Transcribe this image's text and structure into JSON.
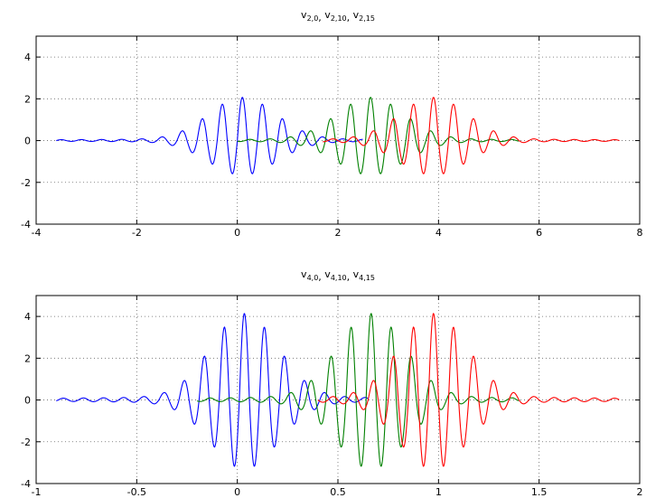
{
  "chart_data": [
    {
      "type": "line",
      "title": "v2,0, v2,10, v2,15",
      "title_parts": [
        {
          "name": "v",
          "sub": "2,0"
        },
        {
          "name": "v",
          "sub": "2,10"
        },
        {
          "name": "v",
          "sub": "2,15"
        }
      ],
      "xlim": [
        -4,
        8
      ],
      "ylim": [
        -4,
        5
      ],
      "xticks": [
        -4,
        -2,
        0,
        2,
        4,
        6,
        8
      ],
      "xtick_labels": [
        "-4",
        "-2",
        "0",
        "2",
        "4",
        "6",
        "8"
      ],
      "yticks": [
        -4,
        -2,
        0,
        2,
        4
      ],
      "ytick_labels": [
        "-4",
        "-2",
        "0",
        "2",
        "4"
      ],
      "grid": true,
      "series": [
        {
          "color": "#0000ff",
          "center": 0.1,
          "peak": 2,
          "trough": -1.6,
          "xmin": -3.6,
          "xmax": 2.5,
          "half_period": 0.2
        },
        {
          "color": "#008000",
          "center": 2.65,
          "peak": 2,
          "trough": -1.6,
          "xmin": 0.0,
          "xmax": 5.6,
          "half_period": 0.2
        },
        {
          "color": "#ff0000",
          "center": 3.9,
          "peak": 2,
          "trough": -1.6,
          "xmin": 1.7,
          "xmax": 7.6,
          "half_period": 0.2
        }
      ]
    },
    {
      "type": "line",
      "title": "v4,0, v4,10, v4,15",
      "title_parts": [
        {
          "name": "v",
          "sub": "4,0"
        },
        {
          "name": "v",
          "sub": "4,10"
        },
        {
          "name": "v",
          "sub": "4,15"
        }
      ],
      "xlim": [
        -1,
        2
      ],
      "ylim": [
        -4,
        5
      ],
      "xticks": [
        -1,
        -0.5,
        0,
        0.5,
        1,
        1.5,
        2
      ],
      "xtick_labels": [
        "-1",
        "-0.5",
        "0",
        "0.5",
        "1",
        "1.5",
        "2"
      ],
      "yticks": [
        -4,
        -2,
        0,
        2,
        4
      ],
      "ytick_labels": [
        "-4",
        "-2",
        "0",
        "2",
        "4"
      ],
      "grid": true,
      "series": [
        {
          "color": "#0000ff",
          "center": 0.035,
          "peak": 4,
          "trough": -3.2,
          "xmin": -0.9,
          "xmax": 0.65,
          "half_period": 0.05
        },
        {
          "color": "#008000",
          "center": 0.665,
          "peak": 4,
          "trough": -3.2,
          "xmin": -0.2,
          "xmax": 1.4,
          "half_period": 0.05
        },
        {
          "color": "#ff0000",
          "center": 0.975,
          "peak": 4,
          "trough": -3.2,
          "xmin": 0.4,
          "xmax": 1.9,
          "half_period": 0.05
        }
      ]
    }
  ]
}
